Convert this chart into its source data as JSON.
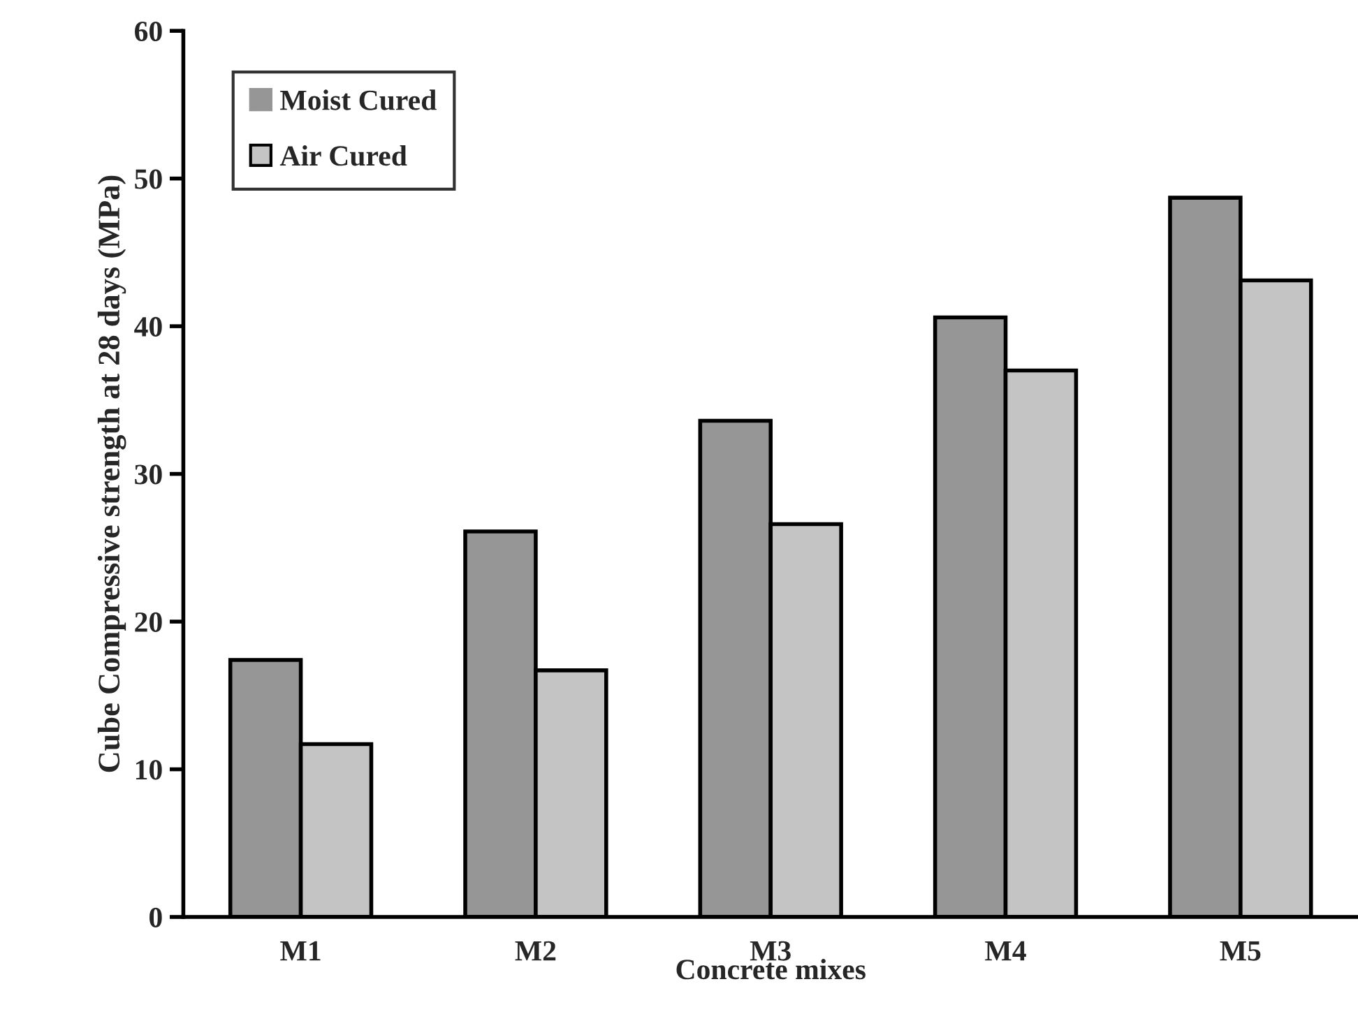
{
  "chart_data": {
    "type": "bar",
    "xlabel": "Concrete mixes",
    "ylabel": "Cube Compressive strength at 28 days (MPa)",
    "categories": [
      "M1",
      "M2",
      "M3",
      "M4",
      "M5"
    ],
    "series": [
      {
        "name": "Moist Cured",
        "color": "#969696",
        "values": [
          17.4,
          26.1,
          33.6,
          40.6,
          48.7
        ]
      },
      {
        "name": "Air Cured",
        "color": "#c4c4c4",
        "values": [
          11.7,
          16.7,
          26.6,
          37.0,
          43.1
        ]
      }
    ],
    "ylim": [
      0,
      60
    ],
    "yticks": [
      0,
      10,
      20,
      30,
      40,
      50,
      60
    ],
    "grid": false,
    "legend": "top left"
  }
}
